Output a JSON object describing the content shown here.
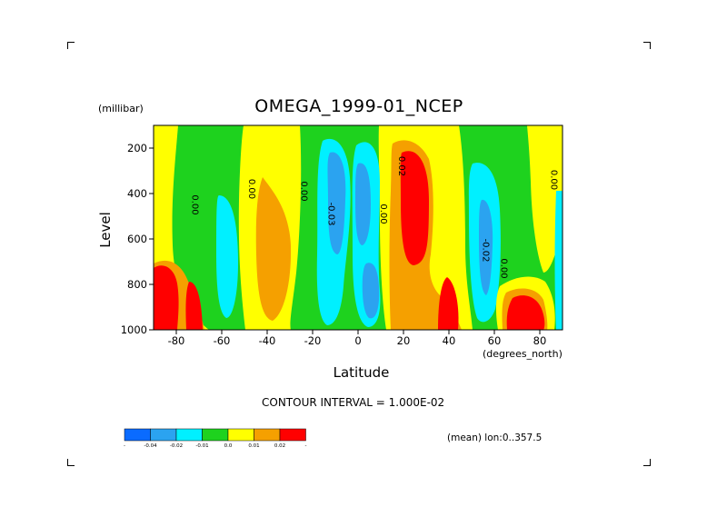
{
  "chart_data": {
    "type": "heatmap",
    "title": "OMEGA_1999-01_NCEP",
    "xlabel": "Latitude",
    "x_unit": "(degrees_north)",
    "ylabel": "Level",
    "y_unit": "(millibar)",
    "xlim": [
      -90,
      90
    ],
    "ylim": [
      1000,
      100
    ],
    "x_ticks": [
      -80,
      -60,
      -40,
      -20,
      0,
      20,
      40,
      60,
      80
    ],
    "y_ticks": [
      200,
      400,
      600,
      800,
      1000
    ],
    "contour_interval_text": "CONTOUR INTERVAL = 1.000E-02",
    "footer_text": "(mean) lon:0..357.5",
    "contour_labels": [
      {
        "text": "0.00",
        "lat": -73,
        "level": 450
      },
      {
        "text": "0.00",
        "lat": -48,
        "level": 380
      },
      {
        "text": "0.00",
        "lat": -25,
        "level": 390
      },
      {
        "text": "-0.03",
        "lat": -13,
        "level": 490
      },
      {
        "text": "0.00",
        "lat": 10,
        "level": 490
      },
      {
        "text": "0.02",
        "lat": 18,
        "level": 280
      },
      {
        "text": "-0.02",
        "lat": 55,
        "level": 650
      },
      {
        "text": "0.00",
        "lat": 63,
        "level": 730
      },
      {
        "text": "0.00",
        "lat": 85,
        "level": 340
      }
    ],
    "legend": {
      "bins": [
        {
          "color": "#0a6bff",
          "label": "-"
        },
        {
          "color": "#2ba3f0",
          "label": "-0.04"
        },
        {
          "color": "#00f0ff",
          "label": "-0.02"
        },
        {
          "color": "#1ed21e",
          "label": "-0.01"
        },
        {
          "color": "#ffff00",
          "label": "0.0"
        },
        {
          "color": "#f5a000",
          "label": "0.01"
        },
        {
          "color": "#ff0000",
          "label": "0.02"
        }
      ],
      "end_label": "-"
    },
    "grid": false
  }
}
